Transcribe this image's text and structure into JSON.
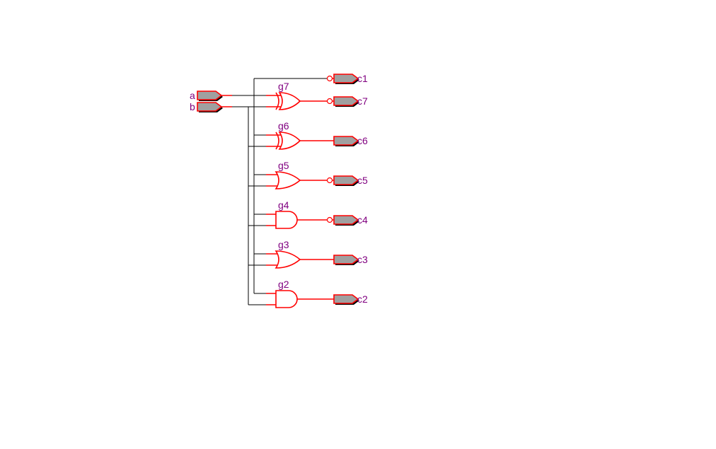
{
  "inputs": [
    {
      "name": "a"
    },
    {
      "name": "b"
    }
  ],
  "outputs": [
    {
      "name": "c1",
      "type": "NOT"
    },
    {
      "name": "c7",
      "gate": "g7",
      "type": "XOR"
    },
    {
      "name": "c6",
      "gate": "g6",
      "type": "XOR"
    },
    {
      "name": "c5",
      "gate": "g5",
      "type": "OR"
    },
    {
      "name": "c4",
      "gate": "g4",
      "type": "AND"
    },
    {
      "name": "c3",
      "gate": "g3",
      "type": "OR"
    },
    {
      "name": "c2",
      "gate": "g2",
      "type": "AND"
    }
  ],
  "colors": {
    "wire": "#000000",
    "component": "#ff0000",
    "label": "#800080",
    "port_fill": "#a0a0a0"
  }
}
